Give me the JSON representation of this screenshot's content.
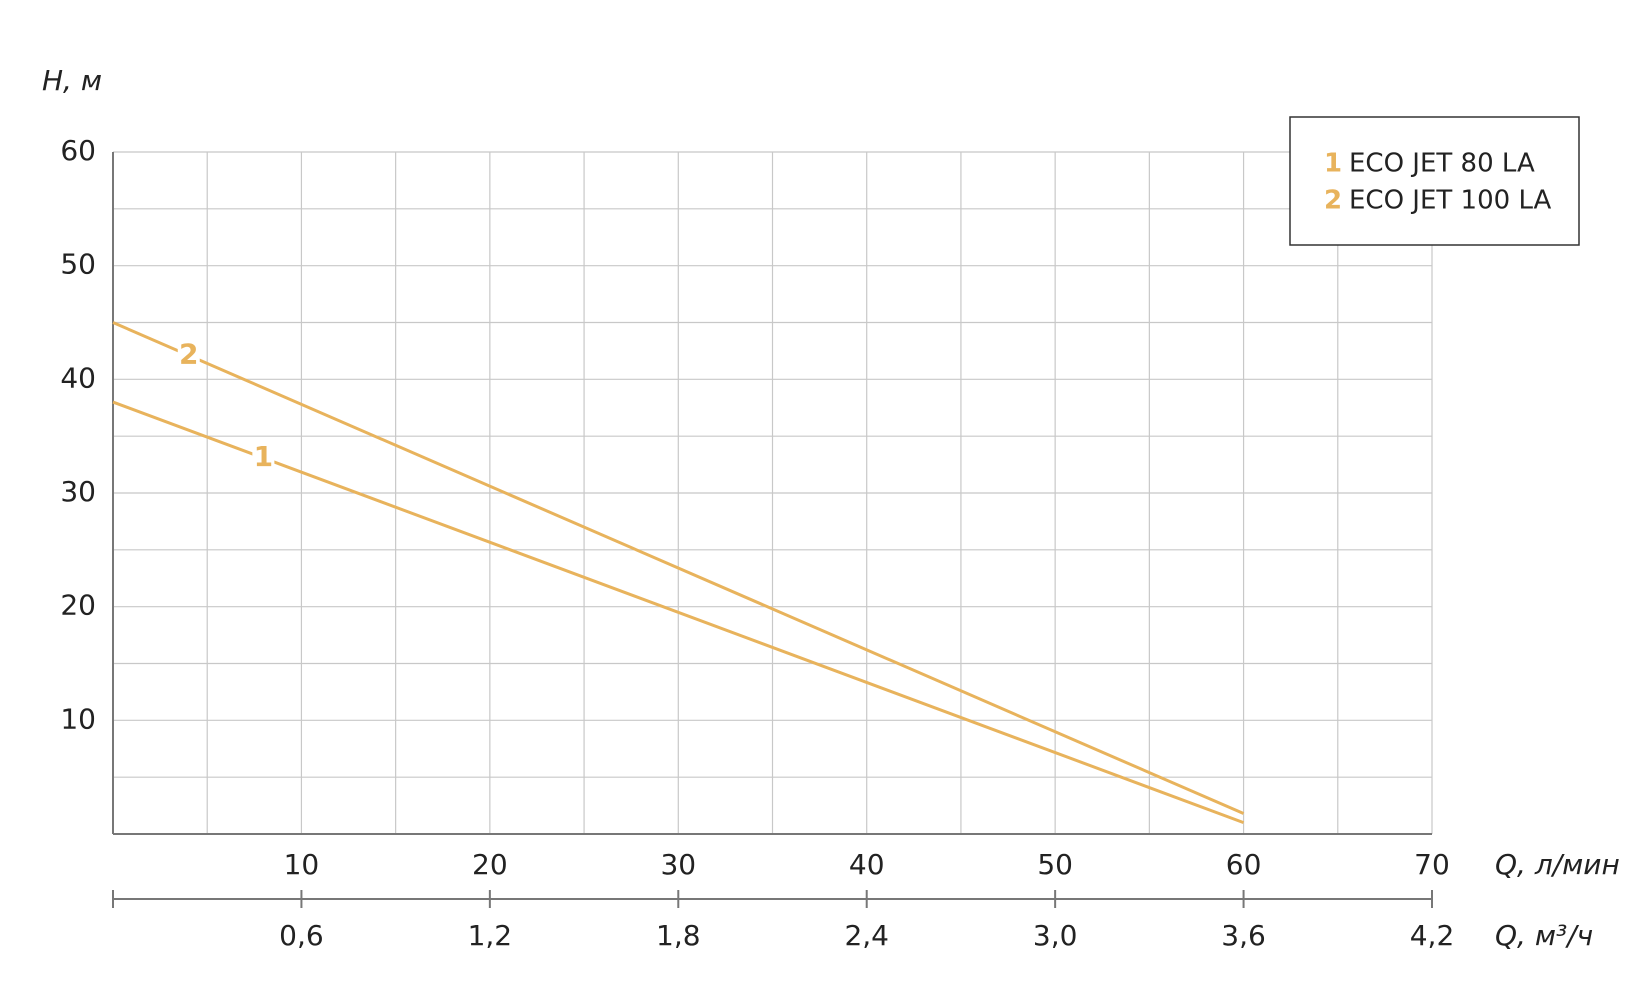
{
  "chart_data": {
    "type": "line",
    "y_label": "H, м",
    "x_label": "Q, л/мин",
    "x2_label": "Q, м³/ч",
    "xlim": [
      0,
      70
    ],
    "xticks": [
      10,
      20,
      30,
      40,
      50,
      60,
      70
    ],
    "x2lim": [
      0,
      4.2
    ],
    "x2ticks": [
      {
        "value": 0.6,
        "label": "0,6"
      },
      {
        "value": 1.2,
        "label": "1,2"
      },
      {
        "value": 1.8,
        "label": "1,8"
      },
      {
        "value": 2.4,
        "label": "2,4"
      },
      {
        "value": 3,
        "label": "3,0"
      },
      {
        "value": 3.6,
        "label": "3,6"
      },
      {
        "value": 4.2,
        "label": "4,2"
      }
    ],
    "ylim": [
      0,
      60
    ],
    "yticks": [
      10,
      20,
      30,
      40,
      50,
      60
    ],
    "xgrid": [
      5,
      10,
      15,
      20,
      25,
      30,
      35,
      40,
      45,
      50,
      55,
      60,
      65,
      70
    ],
    "ygrid": [
      5,
      10,
      15,
      20,
      25,
      30,
      35,
      40,
      45,
      50,
      55,
      60
    ],
    "grid": true,
    "legend": "upper right",
    "series": [
      {
        "label": "1",
        "name": "ECO JET 80 LA",
        "color": "#e8b35c",
        "x": [
          0,
          60
        ],
        "values": [
          38,
          1
        ]
      },
      {
        "label": "2",
        "name": "ECO JET 100 LA",
        "color": "#e8b35c",
        "x": [
          0,
          60
        ],
        "values": [
          45,
          1.8
        ]
      }
    ]
  }
}
